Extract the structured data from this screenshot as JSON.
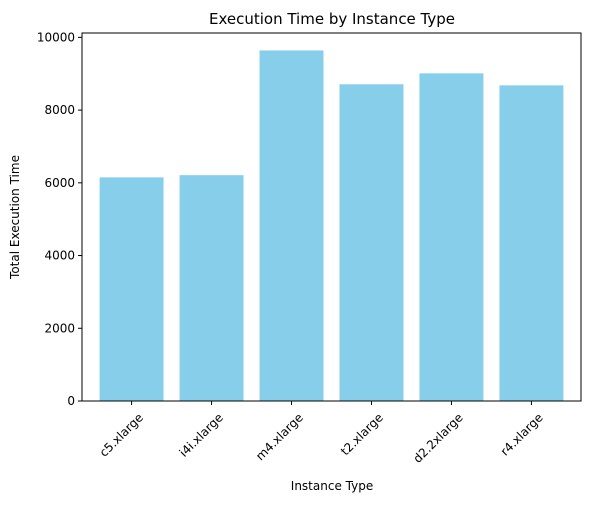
{
  "chart_data": {
    "type": "bar",
    "title": "Execution Time by Instance Type",
    "xlabel": "Instance Type",
    "ylabel": "Total Execution Time",
    "categories": [
      "c5.xlarge",
      "i4i.xlarge",
      "m4.xlarge",
      "t2.xlarge",
      "d2.2xlarge",
      "r4.xlarge"
    ],
    "values": [
      6150,
      6210,
      9640,
      8710,
      9010,
      8680
    ],
    "ylim": [
      0,
      10120
    ],
    "yticks": [
      0,
      2000,
      4000,
      6000,
      8000,
      10000
    ],
    "ytick_labels": [
      "0",
      "2000",
      "4000",
      "6000",
      "8000",
      "10000"
    ],
    "bar_color": "#87ceeb",
    "grid": false,
    "legend": "none"
  }
}
